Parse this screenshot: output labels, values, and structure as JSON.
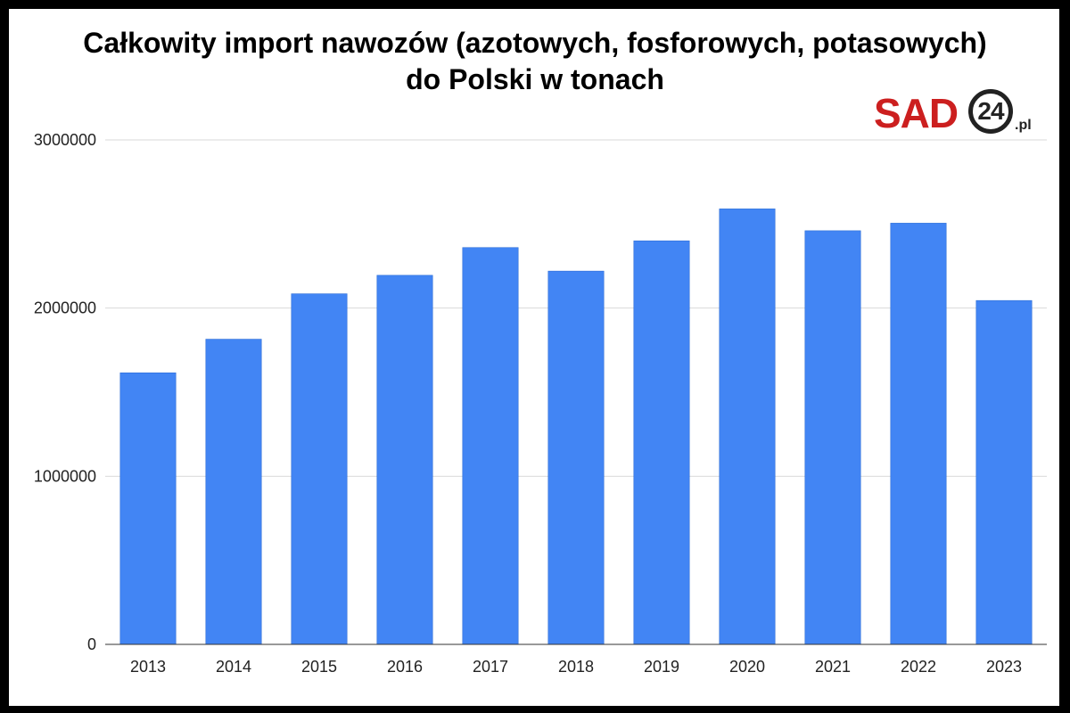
{
  "title_lines": [
    "Całkowity import nawozów (azotowych, fosforowych, potasowych)",
    "do Polski w tonach"
  ],
  "logo": {
    "text": "SAD",
    "badge": "24",
    "tld": ".pl",
    "color": "#cc1f1f"
  },
  "chart_data": {
    "type": "bar",
    "title": "Całkowity import nawozów (azotowych, fosforowych, potasowych) do Polski w tonach",
    "xlabel": "",
    "ylabel": "",
    "categories": [
      "2013",
      "2014",
      "2015",
      "2016",
      "2017",
      "2018",
      "2019",
      "2020",
      "2021",
      "2022",
      "2023"
    ],
    "values": [
      1615000,
      1815000,
      2085000,
      2195000,
      2360000,
      2220000,
      2400000,
      2590000,
      2460000,
      2505000,
      2045000
    ],
    "ylim": [
      0,
      3000000
    ],
    "yticks": [
      0,
      1000000,
      2000000,
      3000000
    ],
    "ytick_labels": [
      "0",
      "1000000",
      "2000000",
      "3000000"
    ],
    "grid": true,
    "legend": "none",
    "bar_color": "#4285f4"
  }
}
